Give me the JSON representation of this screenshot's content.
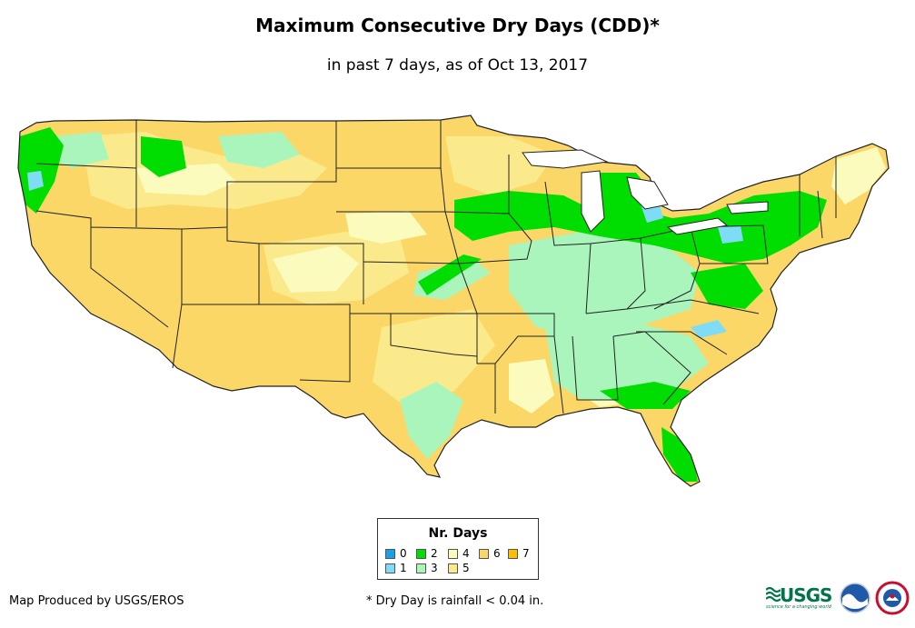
{
  "title": "Maximum Consecutive Dry Days (CDD)*",
  "subtitle": "in past 7 days, as of Oct 13, 2017",
  "legend": {
    "title": "Nr. Days",
    "items": [
      {
        "label": "0",
        "color": "#1aa0e6"
      },
      {
        "label": "1",
        "color": "#7fdcf5"
      },
      {
        "label": "2",
        "color": "#00dd00"
      },
      {
        "label": "3",
        "color": "#aaf5bb"
      },
      {
        "label": "4",
        "color": "#fbfbbe"
      },
      {
        "label": "5",
        "color": "#fbea8c"
      },
      {
        "label": "6",
        "color": "#fbd768"
      },
      {
        "label": "7",
        "color": "#fcbf00"
      }
    ]
  },
  "credit": "Map Produced by USGS/EROS",
  "footnote": "* Dry Day is rainfall < 0.04 in.",
  "logos": {
    "usgs": "USGS",
    "usgs_tagline": "science for a changing world"
  },
  "colors": {
    "outline": "#222222",
    "base": "#fbd768"
  }
}
